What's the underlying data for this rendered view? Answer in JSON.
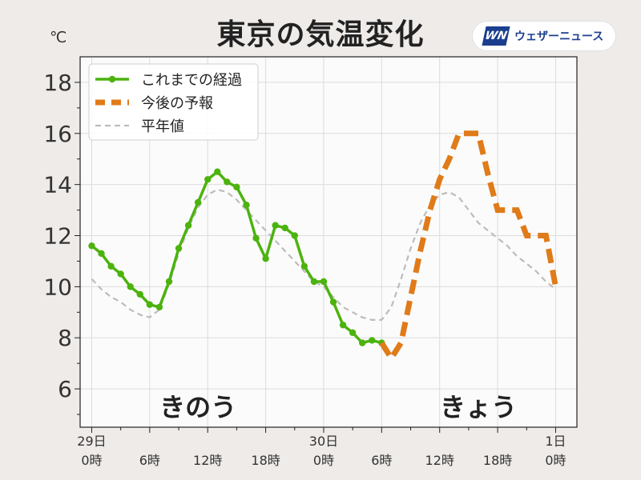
{
  "title": "東京の気温変化",
  "logo": {
    "mark": "WN",
    "text": "ウェザーニュース"
  },
  "chart_data": {
    "type": "line",
    "title": "東京の気温変化",
    "unit": "℃",
    "ylim": [
      4.5,
      19.0
    ],
    "yticks": [
      6,
      8,
      10,
      12,
      14,
      16,
      18
    ],
    "xlim": [
      -1.2,
      50.2
    ],
    "grid": true,
    "legend": "top-left",
    "x_ticks": [
      {
        "x": 0,
        "label": "29日",
        "label2": "0時"
      },
      {
        "x": 6,
        "label": "",
        "label2": "6時"
      },
      {
        "x": 12,
        "label": "",
        "label2": "12時"
      },
      {
        "x": 18,
        "label": "",
        "label2": "18時"
      },
      {
        "x": 24,
        "label": "30日",
        "label2": "0時"
      },
      {
        "x": 30,
        "label": "",
        "label2": "6時"
      },
      {
        "x": 36,
        "label": "",
        "label2": "12時"
      },
      {
        "x": 42,
        "label": "",
        "label2": "18時"
      },
      {
        "x": 48,
        "label": "1日",
        "label2": "0時"
      }
    ],
    "annotations": [
      {
        "text": "きのう",
        "x": 11
      },
      {
        "text": "きょう",
        "x": 40
      }
    ],
    "series": [
      {
        "name": "これまでの経過",
        "color": "#4cb30e",
        "style": "solid-markers",
        "x": [
          0,
          1,
          2,
          3,
          4,
          5,
          6,
          7,
          8,
          9,
          10,
          11,
          12,
          13,
          14,
          15,
          16,
          17,
          18,
          19,
          20,
          21,
          22,
          23,
          24,
          25,
          26,
          27,
          28,
          29,
          30
        ],
        "values": [
          11.6,
          11.3,
          10.8,
          10.5,
          10.0,
          9.7,
          9.3,
          9.2,
          10.2,
          11.5,
          12.4,
          13.3,
          14.2,
          14.5,
          14.1,
          13.9,
          13.2,
          11.9,
          11.1,
          12.4,
          12.3,
          12.0,
          10.8,
          10.2,
          10.2,
          9.4,
          8.5,
          8.2,
          7.8,
          7.9,
          7.8
        ]
      },
      {
        "name": "今後の予報",
        "color": "#e07b1a",
        "style": "dashed-thick",
        "x": [
          30,
          31,
          32,
          33,
          34,
          35,
          36,
          37,
          38,
          39,
          40,
          41,
          42,
          43,
          44,
          45,
          46,
          47,
          48
        ],
        "values": [
          7.8,
          7.2,
          7.8,
          9.6,
          11.4,
          13.0,
          14.2,
          15.0,
          16.0,
          16.0,
          16.0,
          14.4,
          13.0,
          13.0,
          13.0,
          12.0,
          12.0,
          12.0,
          10.0
        ]
      },
      {
        "name": "平年値",
        "color": "#bcbcbc",
        "style": "dashed-thin",
        "x": [
          0,
          1,
          2,
          3,
          4,
          5,
          6,
          7,
          8,
          9,
          10,
          11,
          12,
          13,
          14,
          15,
          16,
          17,
          18,
          19,
          20,
          21,
          22,
          23,
          24,
          25,
          26,
          27,
          28,
          29,
          30,
          31,
          32,
          33,
          34,
          35,
          36,
          37,
          38,
          39,
          40,
          41,
          42,
          43,
          44,
          45,
          46,
          47,
          48
        ],
        "values": [
          10.3,
          9.9,
          9.6,
          9.4,
          9.1,
          8.9,
          8.8,
          9.1,
          10.1,
          11.3,
          12.3,
          13.1,
          13.6,
          13.8,
          13.7,
          13.4,
          13.0,
          12.6,
          12.2,
          11.8,
          11.4,
          11.0,
          10.6,
          10.2,
          10.0,
          9.6,
          9.2,
          9.0,
          8.8,
          8.7,
          8.7,
          9.2,
          10.3,
          11.5,
          12.5,
          13.2,
          13.6,
          13.7,
          13.5,
          13.0,
          12.5,
          12.2,
          11.9,
          11.6,
          11.2,
          10.9,
          10.6,
          10.2,
          9.9
        ]
      }
    ]
  }
}
